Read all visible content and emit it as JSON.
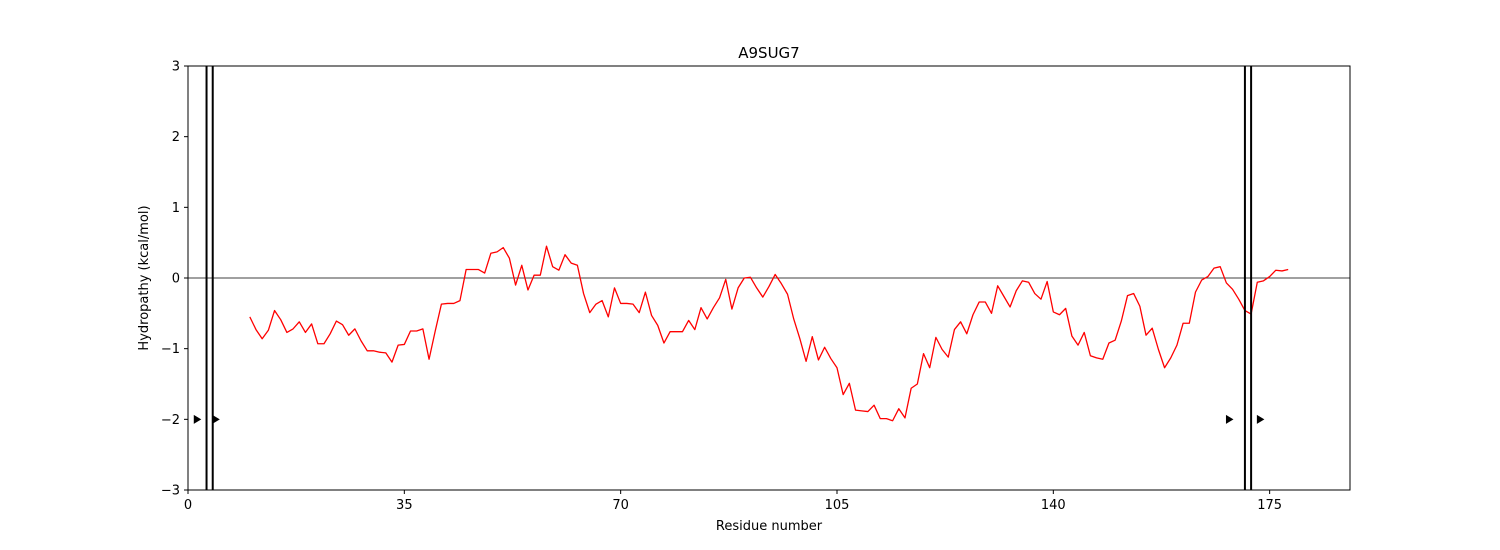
{
  "chart_data": {
    "type": "line",
    "title": "A9SUG7",
    "xlabel": "Residue number",
    "ylabel": "Hydropathy (kcal/mol)",
    "xlim": [
      0,
      188
    ],
    "ylim": [
      -3,
      3
    ],
    "xticks": [
      0,
      35,
      70,
      105,
      140,
      175
    ],
    "yticks": [
      -3,
      -2,
      -1,
      0,
      1,
      2,
      3
    ],
    "grid": false,
    "line_color": "#ff0000",
    "zero_line": 0,
    "series": [
      {
        "x": [
          10,
          11,
          12,
          13,
          14,
          15,
          16,
          17,
          18,
          19,
          20,
          21,
          22,
          23,
          24,
          25,
          26,
          27,
          28,
          29,
          30,
          31,
          32,
          33,
          34,
          35,
          36,
          37,
          38,
          39,
          40,
          41,
          42,
          43,
          44,
          45,
          46,
          47,
          48,
          49,
          50,
          51,
          52,
          53,
          54,
          55,
          56,
          57,
          58,
          59,
          60,
          61,
          62,
          63,
          64,
          65,
          66,
          67,
          68,
          69,
          70,
          71,
          72,
          73,
          74,
          75,
          76,
          77,
          78,
          79,
          80,
          81,
          82,
          83,
          84,
          85,
          86,
          87,
          88,
          89,
          90,
          91,
          92,
          93,
          94,
          95,
          96,
          97,
          98,
          99,
          100,
          101,
          102,
          103,
          104,
          105,
          106,
          107,
          108,
          109,
          110,
          111,
          112,
          113,
          114,
          115,
          116,
          117,
          118,
          119,
          120,
          121,
          122,
          123,
          124,
          125,
          126,
          127,
          128,
          129,
          130,
          131,
          132,
          133,
          134,
          135,
          136,
          137,
          138,
          139,
          140,
          141,
          142,
          143,
          144,
          145,
          146,
          147,
          148,
          149,
          150,
          151,
          152,
          153,
          154,
          155,
          156,
          157,
          158,
          159,
          160,
          161,
          162,
          163,
          164,
          165,
          166,
          167,
          168,
          169,
          170,
          171,
          172,
          173,
          174,
          175,
          176,
          177,
          178
        ],
        "y": [
          -0.55,
          -0.73,
          -0.86,
          -0.74,
          -0.46,
          -0.59,
          -0.77,
          -0.72,
          -0.62,
          -0.77,
          -0.65,
          -0.93,
          -0.93,
          -0.79,
          -0.61,
          -0.66,
          -0.81,
          -0.72,
          -0.89,
          -1.03,
          -1.03,
          -1.05,
          -1.06,
          -1.19,
          -0.95,
          -0.94,
          -0.75,
          -0.75,
          -0.72,
          -1.15,
          -0.75,
          -0.37,
          -0.36,
          -0.36,
          -0.32,
          0.12,
          0.12,
          0.12,
          0.07,
          0.35,
          0.37,
          0.43,
          0.28,
          -0.1,
          0.18,
          -0.17,
          0.04,
          0.04,
          0.45,
          0.16,
          0.11,
          0.33,
          0.21,
          0.18,
          -0.22,
          -0.49,
          -0.37,
          -0.32,
          -0.55,
          -0.14,
          -0.36,
          -0.36,
          -0.37,
          -0.49,
          -0.2,
          -0.53,
          -0.67,
          -0.92,
          -0.76,
          -0.76,
          -0.76,
          -0.6,
          -0.73,
          -0.42,
          -0.58,
          -0.42,
          -0.28,
          -0.02,
          -0.44,
          -0.14,
          0.0,
          0.01,
          -0.14,
          -0.27,
          -0.12,
          0.05,
          -0.08,
          -0.23,
          -0.58,
          -0.86,
          -1.18,
          -0.83,
          -1.16,
          -0.98,
          -1.14,
          -1.27,
          -1.65,
          -1.49,
          -1.87,
          -1.88,
          -1.89,
          -1.8,
          -1.99,
          -1.99,
          -2.02,
          -1.85,
          -1.98,
          -1.56,
          -1.5,
          -1.07,
          -1.27,
          -0.84,
          -1.01,
          -1.12,
          -0.73,
          -0.62,
          -0.79,
          -0.52,
          -0.34,
          -0.34,
          -0.5,
          -0.11,
          -0.26,
          -0.41,
          -0.18,
          -0.04,
          -0.06,
          -0.22,
          -0.3,
          -0.05,
          -0.48,
          -0.52,
          -0.43,
          -0.82,
          -0.95,
          -0.77,
          -1.1,
          -1.13,
          -1.15,
          -0.92,
          -0.88,
          -0.61,
          -0.25,
          -0.22,
          -0.4,
          -0.81,
          -0.71,
          -1.01,
          -1.27,
          -1.13,
          -0.95,
          -0.64,
          -0.64,
          -0.2,
          -0.03,
          0.02,
          0.14,
          0.16,
          -0.07,
          -0.16,
          -0.3,
          -0.46,
          -0.51,
          -0.06,
          -0.04,
          0.02,
          0.11,
          0.1,
          0.12
        ]
      }
    ],
    "vlines": [
      3,
      4,
      171,
      172
    ],
    "markers": [
      {
        "x": 1.5,
        "y": -2
      },
      {
        "x": 4.5,
        "y": -2
      },
      {
        "x": 168.5,
        "y": -2
      },
      {
        "x": 173.5,
        "y": -2
      }
    ]
  }
}
